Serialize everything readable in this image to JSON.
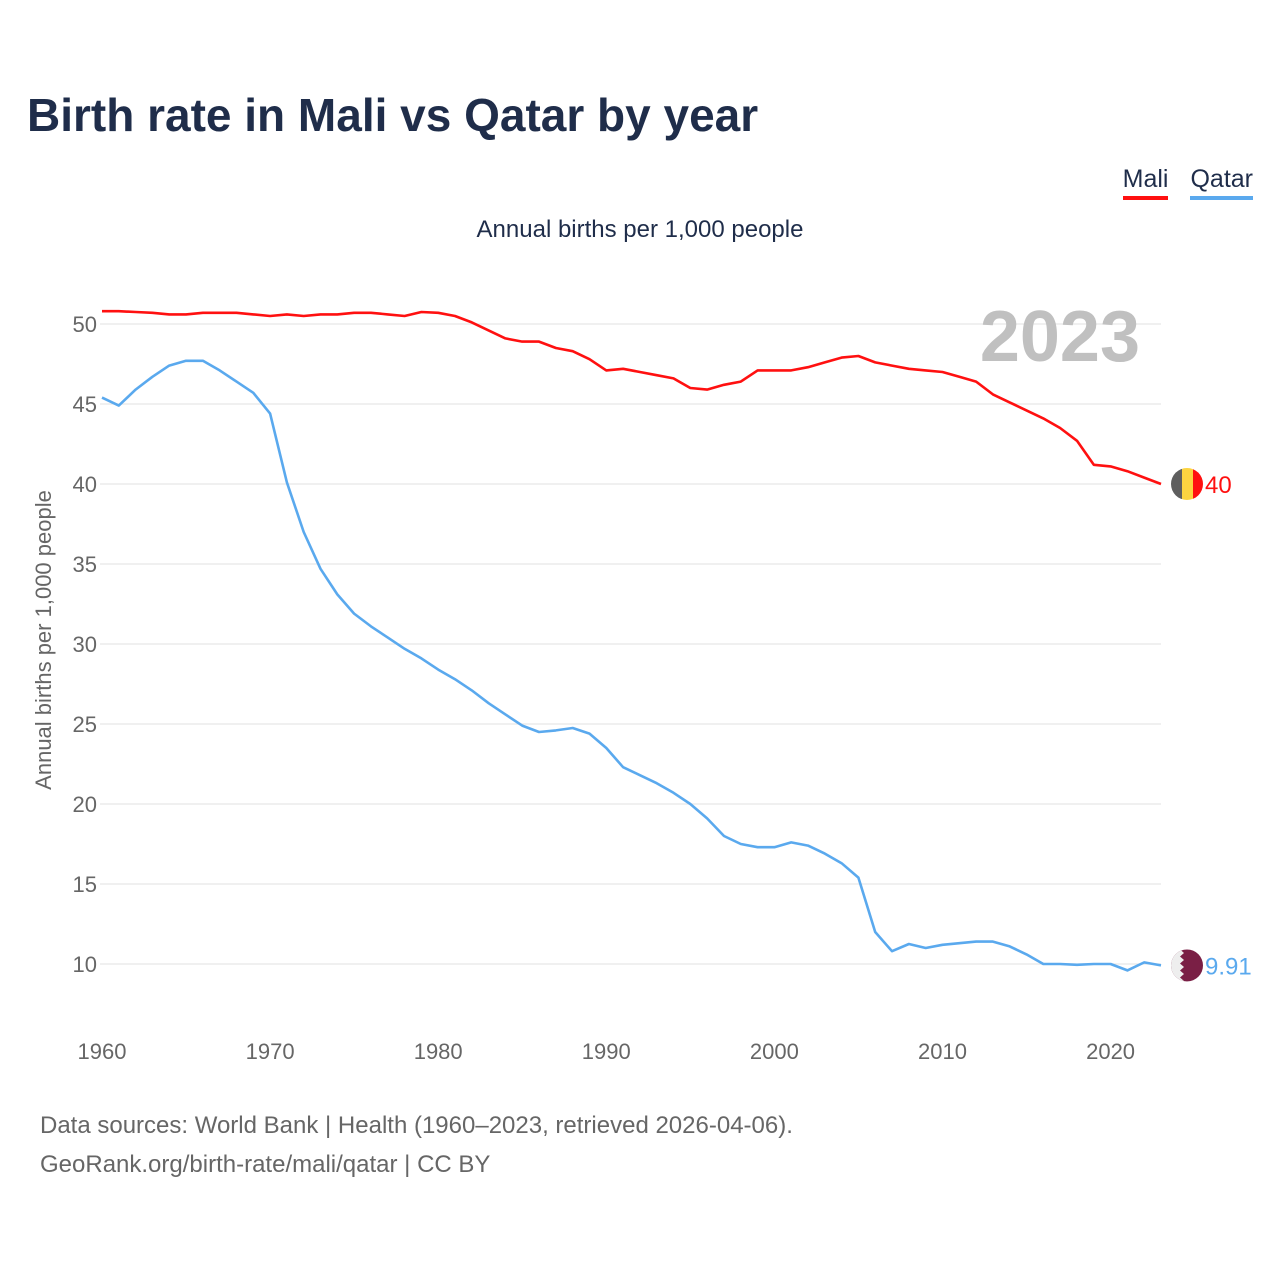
{
  "title": "Birth rate in Mali vs Qatar by year",
  "legend": [
    {
      "label": "Mali",
      "color": "#ff1010"
    },
    {
      "label": "Qatar",
      "color": "#5aa9ee"
    }
  ],
  "source_line1": "Data sources: World Bank | Health (1960–2023, retrieved 2026-04-06).",
  "source_line2": "GeoRank.org/birth-rate/mali/qatar | CC BY",
  "chart_data": {
    "type": "line",
    "title": "Birth rate in Mali vs Qatar by year",
    "subtitle": "Annual births per 1,000 people",
    "xlabel": "",
    "ylabel": "Annual births per 1,000 people",
    "year_label": "2023",
    "xlim": [
      1960,
      2023
    ],
    "ylim": [
      7,
      53
    ],
    "xticks": [
      1960,
      1970,
      1980,
      1990,
      2000,
      2010,
      2020
    ],
    "yticks": [
      10,
      15,
      20,
      25,
      30,
      35,
      40,
      45,
      50
    ],
    "grid": true,
    "legend_position": "top-right",
    "x_start": 1960,
    "series": [
      {
        "name": "Mali",
        "color": "#ff1010",
        "end_label": "40",
        "values": [
          50.8,
          50.8,
          50.75,
          50.7,
          50.6,
          50.6,
          50.7,
          50.7,
          50.7,
          50.6,
          50.5,
          50.6,
          50.5,
          50.6,
          50.6,
          50.7,
          50.7,
          50.6,
          50.5,
          50.75,
          50.7,
          50.5,
          50.1,
          49.6,
          49.1,
          48.9,
          48.9,
          48.5,
          48.3,
          47.8,
          47.1,
          47.2,
          47.0,
          46.8,
          46.6,
          46.0,
          45.9,
          46.2,
          46.4,
          47.1,
          47.1,
          47.1,
          47.3,
          47.6,
          47.9,
          48.0,
          47.6,
          47.4,
          47.2,
          47.1,
          47.0,
          46.7,
          46.4,
          45.6,
          45.1,
          44.6,
          44.1,
          43.5,
          42.7,
          41.2,
          41.1,
          40.8,
          40.4,
          40.0
        ]
      },
      {
        "name": "Qatar",
        "color": "#5aa9ee",
        "end_label": "9.91",
        "values": [
          45.4,
          44.9,
          45.9,
          46.7,
          47.4,
          47.7,
          47.7,
          47.1,
          46.4,
          45.7,
          44.4,
          40.1,
          37.0,
          34.7,
          33.1,
          31.9,
          31.1,
          30.4,
          29.7,
          29.1,
          28.4,
          27.8,
          27.1,
          26.3,
          25.6,
          24.9,
          24.5,
          24.6,
          24.75,
          24.4,
          23.5,
          22.3,
          21.8,
          21.3,
          20.7,
          20.0,
          19.1,
          18.0,
          17.5,
          17.3,
          17.3,
          17.6,
          17.4,
          16.9,
          16.3,
          15.4,
          12.0,
          10.8,
          11.25,
          11.0,
          11.2,
          11.3,
          11.4,
          11.4,
          11.1,
          10.6,
          10.0,
          10.0,
          9.95,
          10.0,
          10.0,
          9.6,
          10.1,
          9.91
        ]
      }
    ]
  }
}
